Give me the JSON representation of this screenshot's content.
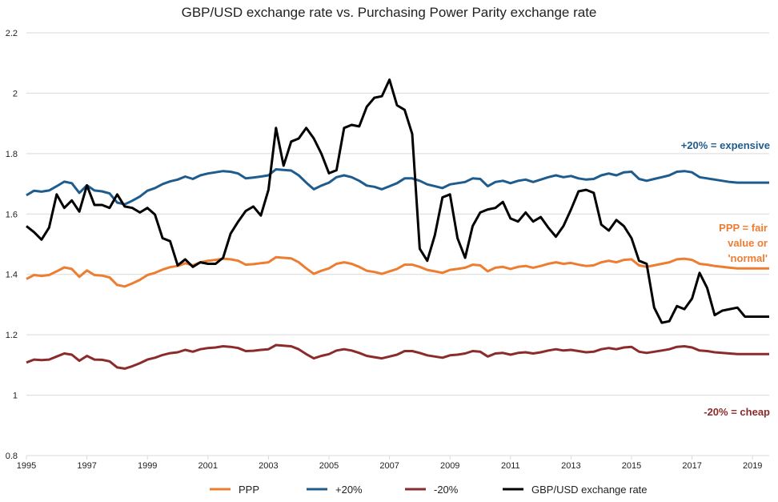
{
  "chart_data": {
    "type": "line",
    "title": "GBP/USD exchange rate vs. Purchasing Power Parity exchange rate",
    "xlabel": "",
    "ylabel": "",
    "xlim": [
      1995,
      2019.6
    ],
    "ylim": [
      0.8,
      2.2
    ],
    "yticks": [
      0.8,
      1,
      1.2,
      1.4,
      1.6,
      1.8,
      2,
      2.2
    ],
    "ytick_labels": [
      "0.8",
      "1",
      "1.2",
      "1.4",
      "1.6",
      "1.8",
      "2",
      "2.2"
    ],
    "xticks": [
      1995,
      1997,
      1999,
      2001,
      2003,
      2005,
      2007,
      2009,
      2011,
      2013,
      2015,
      2017,
      2019
    ],
    "xtick_labels": [
      "1995",
      "1997",
      "1999",
      "2001",
      "2003",
      "2005",
      "2007",
      "2009",
      "2011",
      "2013",
      "2015",
      "2017",
      "2019"
    ],
    "grid": true,
    "legend_position": "bottom",
    "colors": {
      "ppp": "#ED7D31",
      "plus20": "#1F5C8E",
      "minus20": "#8B2B2B",
      "gbpusd": "#000000",
      "grid": "#D9D9D9"
    },
    "x": [
      1995.0,
      1995.25,
      1995.5,
      1995.75,
      1996.0,
      1996.25,
      1996.5,
      1996.75,
      1997.0,
      1997.25,
      1997.5,
      1997.75,
      1998.0,
      1998.25,
      1998.5,
      1998.75,
      1999.0,
      1999.25,
      1999.5,
      1999.75,
      2000.0,
      2000.25,
      2000.5,
      2000.75,
      2001.0,
      2001.25,
      2001.5,
      2001.75,
      2002.0,
      2002.25,
      2002.5,
      2002.75,
      2003.0,
      2003.25,
      2003.5,
      2003.75,
      2004.0,
      2004.25,
      2004.5,
      2004.75,
      2005.0,
      2005.25,
      2005.5,
      2005.75,
      2006.0,
      2006.25,
      2006.5,
      2006.75,
      2007.0,
      2007.25,
      2007.5,
      2007.75,
      2008.0,
      2008.25,
      2008.5,
      2008.75,
      2009.0,
      2009.25,
      2009.5,
      2009.75,
      2010.0,
      2010.25,
      2010.5,
      2010.75,
      2011.0,
      2011.25,
      2011.5,
      2011.75,
      2012.0,
      2012.25,
      2012.5,
      2012.75,
      2013.0,
      2013.25,
      2013.5,
      2013.75,
      2014.0,
      2014.25,
      2014.5,
      2014.75,
      2015.0,
      2015.25,
      2015.5,
      2015.75,
      2016.0,
      2016.25,
      2016.5,
      2016.75,
      2017.0,
      2017.25,
      2017.5,
      2017.75,
      2018.0,
      2018.25,
      2018.5,
      2018.75,
      2019.0,
      2019.25,
      2019.5
    ],
    "series": [
      {
        "name": "PPP",
        "key": "ppp",
        "values": [
          1.385,
          1.398,
          1.395,
          1.398,
          1.41,
          1.423,
          1.418,
          1.392,
          1.413,
          1.398,
          1.396,
          1.39,
          1.365,
          1.36,
          1.37,
          1.382,
          1.398,
          1.405,
          1.416,
          1.424,
          1.428,
          1.437,
          1.43,
          1.44,
          1.445,
          1.448,
          1.452,
          1.45,
          1.445,
          1.432,
          1.434,
          1.437,
          1.44,
          1.457,
          1.455,
          1.453,
          1.44,
          1.42,
          1.402,
          1.412,
          1.42,
          1.435,
          1.44,
          1.435,
          1.425,
          1.412,
          1.408,
          1.402,
          1.41,
          1.418,
          1.432,
          1.432,
          1.425,
          1.415,
          1.41,
          1.405,
          1.415,
          1.418,
          1.422,
          1.432,
          1.43,
          1.41,
          1.422,
          1.425,
          1.418,
          1.425,
          1.428,
          1.422,
          1.428,
          1.435,
          1.44,
          1.435,
          1.438,
          1.432,
          1.428,
          1.43,
          1.44,
          1.445,
          1.44,
          1.448,
          1.45,
          1.43,
          1.425,
          1.43,
          1.435,
          1.44,
          1.45,
          1.452,
          1.448,
          1.435,
          1.432,
          1.428,
          1.425,
          1.422,
          1.42,
          1.42,
          1.42,
          1.42,
          1.42
        ]
      },
      {
        "name": "+20%",
        "key": "plus20",
        "values": [
          1.662,
          1.677,
          1.674,
          1.678,
          1.692,
          1.707,
          1.702,
          1.67,
          1.695,
          1.678,
          1.675,
          1.668,
          1.638,
          1.632,
          1.644,
          1.658,
          1.677,
          1.686,
          1.699,
          1.708,
          1.714,
          1.724,
          1.716,
          1.728,
          1.734,
          1.738,
          1.742,
          1.74,
          1.734,
          1.718,
          1.721,
          1.724,
          1.728,
          1.748,
          1.746,
          1.744,
          1.728,
          1.704,
          1.682,
          1.694,
          1.704,
          1.722,
          1.728,
          1.722,
          1.71,
          1.694,
          1.69,
          1.682,
          1.692,
          1.702,
          1.718,
          1.718,
          1.71,
          1.698,
          1.692,
          1.686,
          1.698,
          1.702,
          1.706,
          1.718,
          1.716,
          1.692,
          1.706,
          1.71,
          1.702,
          1.71,
          1.714,
          1.706,
          1.714,
          1.722,
          1.728,
          1.722,
          1.726,
          1.718,
          1.714,
          1.716,
          1.728,
          1.734,
          1.728,
          1.738,
          1.74,
          1.716,
          1.71,
          1.716,
          1.722,
          1.728,
          1.74,
          1.742,
          1.738,
          1.722,
          1.718,
          1.714,
          1.71,
          1.706,
          1.704,
          1.704,
          1.704,
          1.704,
          1.704
        ]
      },
      {
        "name": "-20%",
        "key": "minus20",
        "values": [
          1.108,
          1.118,
          1.116,
          1.118,
          1.128,
          1.138,
          1.134,
          1.114,
          1.13,
          1.118,
          1.117,
          1.112,
          1.092,
          1.088,
          1.096,
          1.106,
          1.118,
          1.124,
          1.133,
          1.139,
          1.142,
          1.15,
          1.144,
          1.152,
          1.156,
          1.158,
          1.162,
          1.16,
          1.156,
          1.146,
          1.147,
          1.15,
          1.152,
          1.166,
          1.164,
          1.162,
          1.152,
          1.136,
          1.122,
          1.13,
          1.136,
          1.148,
          1.152,
          1.148,
          1.14,
          1.13,
          1.126,
          1.122,
          1.128,
          1.134,
          1.146,
          1.146,
          1.14,
          1.132,
          1.128,
          1.124,
          1.132,
          1.134,
          1.138,
          1.146,
          1.144,
          1.128,
          1.138,
          1.14,
          1.134,
          1.14,
          1.142,
          1.138,
          1.142,
          1.148,
          1.152,
          1.148,
          1.15,
          1.146,
          1.142,
          1.144,
          1.152,
          1.156,
          1.152,
          1.158,
          1.16,
          1.144,
          1.14,
          1.144,
          1.148,
          1.152,
          1.16,
          1.162,
          1.158,
          1.148,
          1.146,
          1.142,
          1.14,
          1.138,
          1.136,
          1.136,
          1.136,
          1.136,
          1.136
        ]
      },
      {
        "name": "GBP/USD exchange rate",
        "key": "gbpusd",
        "values": [
          1.56,
          1.54,
          1.515,
          1.555,
          1.665,
          1.62,
          1.645,
          1.608,
          1.695,
          1.63,
          1.63,
          1.62,
          1.665,
          1.625,
          1.62,
          1.605,
          1.62,
          1.598,
          1.52,
          1.51,
          1.43,
          1.45,
          1.425,
          1.44,
          1.435,
          1.435,
          1.455,
          1.535,
          1.575,
          1.61,
          1.625,
          1.595,
          1.68,
          1.885,
          1.76,
          1.84,
          1.85,
          1.885,
          1.85,
          1.8,
          1.735,
          1.745,
          1.885,
          1.895,
          1.89,
          1.955,
          1.985,
          1.99,
          2.045,
          1.96,
          1.945,
          1.865,
          1.485,
          1.445,
          1.53,
          1.655,
          1.665,
          1.52,
          1.455,
          1.56,
          1.605,
          1.615,
          1.62,
          1.64,
          1.585,
          1.575,
          1.605,
          1.575,
          1.59,
          1.555,
          1.525,
          1.56,
          1.615,
          1.675,
          1.68,
          1.67,
          1.565,
          1.545,
          1.58,
          1.56,
          1.52,
          1.445,
          1.435,
          1.29,
          1.24,
          1.245,
          1.295,
          1.285,
          1.32,
          1.405,
          1.355,
          1.265,
          1.28,
          1.285,
          1.29,
          1.26,
          1.26,
          1.26,
          1.26
        ]
      }
    ],
    "annotations": [
      {
        "text": "+20% = expensive",
        "series": "plus20"
      },
      {
        "text": [
          "PPP = fair",
          "value or",
          "'normal'"
        ],
        "series": "ppp"
      },
      {
        "text": "-20% = cheap",
        "series": "minus20"
      }
    ]
  },
  "legend": {
    "items": [
      {
        "label": "PPP",
        "key": "ppp"
      },
      {
        "label": "+20%",
        "key": "plus20"
      },
      {
        "label": "-20%",
        "key": "minus20"
      },
      {
        "label": "GBP/USD exchange rate",
        "key": "gbpusd"
      }
    ]
  }
}
